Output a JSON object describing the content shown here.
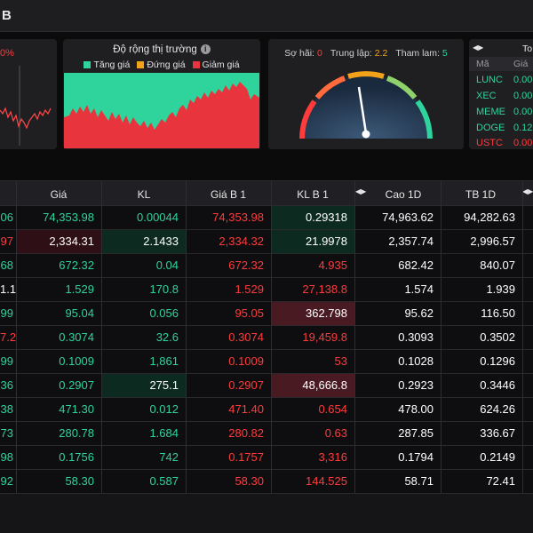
{
  "window": {
    "title": "B"
  },
  "panel_left": {
    "percent": "0%"
  },
  "market_breadth": {
    "title": "Độ rộng thị trường",
    "legend": [
      {
        "label": "Tăng giá",
        "color": "#2fd39c"
      },
      {
        "label": "Đứng giá",
        "color": "#f2a21a"
      },
      {
        "label": "Giảm giá",
        "color": "#e8343c"
      }
    ]
  },
  "fear_greed": {
    "fear_label": "Sợ hãi:",
    "fear_value": "0",
    "neutral_label": "Trung lập:",
    "neutral_value": "2.2",
    "greed_label": "Tham lam:",
    "greed_value": "5"
  },
  "top_panel": {
    "header": "To",
    "col_symbol": "Mã",
    "col_price": "Giá",
    "rows": [
      {
        "symbol": "LUNC",
        "value": "0.00",
        "dir": "up"
      },
      {
        "symbol": "XEC",
        "value": "0.00",
        "dir": "up"
      },
      {
        "symbol": "MEME",
        "value": "0.00",
        "dir": "up"
      },
      {
        "symbol": "DOGE",
        "value": "0.12",
        "dir": "up"
      },
      {
        "symbol": "USTC",
        "value": "0.00",
        "dir": "down"
      }
    ]
  },
  "table": {
    "headers": [
      "Giá",
      "KL",
      "Giá B 1",
      "KL B 1",
      "Cao 1D",
      "TB 1D"
    ],
    "rows": [
      {
        "c0": "06",
        "price": "74,353.98",
        "vol": "0.00044",
        "bid": "74,353.98",
        "bidvol": "0.29318",
        "high": "74,963.62",
        "avg": "94,282.63"
      },
      {
        "c0": "97",
        "price": "2,334.31",
        "vol": "2.1433",
        "bid": "2,334.32",
        "bidvol": "21.9978",
        "high": "2,357.74",
        "avg": "2,996.57"
      },
      {
        "c0": "68",
        "price": "672.32",
        "vol": "0.04",
        "bid": "672.32",
        "bidvol": "4.935",
        "high": "682.42",
        "avg": "840.07"
      },
      {
        "c0": "1.1",
        "price": "1.529",
        "vol": "170.8",
        "bid": "1.529",
        "bidvol": "27,138.8",
        "high": "1.574",
        "avg": "1.939"
      },
      {
        "c0": "99",
        "price": "95.04",
        "vol": "0.056",
        "bid": "95.05",
        "bidvol": "362.798",
        "high": "95.62",
        "avg": "116.50"
      },
      {
        "c0": "7.2",
        "price": "0.3074",
        "vol": "32.6",
        "bid": "0.3074",
        "bidvol": "19,459.8",
        "high": "0.3093",
        "avg": "0.3502"
      },
      {
        "c0": "99",
        "price": "0.1009",
        "vol": "1,861",
        "bid": "0.1009",
        "bidvol": "53",
        "high": "0.1028",
        "avg": "0.1296"
      },
      {
        "c0": "36",
        "price": "0.2907",
        "vol": "275.1",
        "bid": "0.2907",
        "bidvol": "48,666.8",
        "high": "0.2923",
        "avg": "0.3446"
      },
      {
        "c0": "38",
        "price": "471.30",
        "vol": "0.012",
        "bid": "471.40",
        "bidvol": "0.654",
        "high": "478.00",
        "avg": "624.26"
      },
      {
        "c0": "73",
        "price": "280.78",
        "vol": "1.684",
        "bid": "280.82",
        "bidvol": "0.63",
        "high": "287.85",
        "avg": "336.67"
      },
      {
        "c0": "98",
        "price": "0.1756",
        "vol": "742",
        "bid": "0.1757",
        "bidvol": "3,316",
        "high": "0.1794",
        "avg": "0.2149"
      },
      {
        "c0": "92",
        "price": "58.30",
        "vol": "0.587",
        "bid": "58.30",
        "bidvol": "144.525",
        "high": "58.71",
        "avg": "72.41"
      }
    ]
  }
}
